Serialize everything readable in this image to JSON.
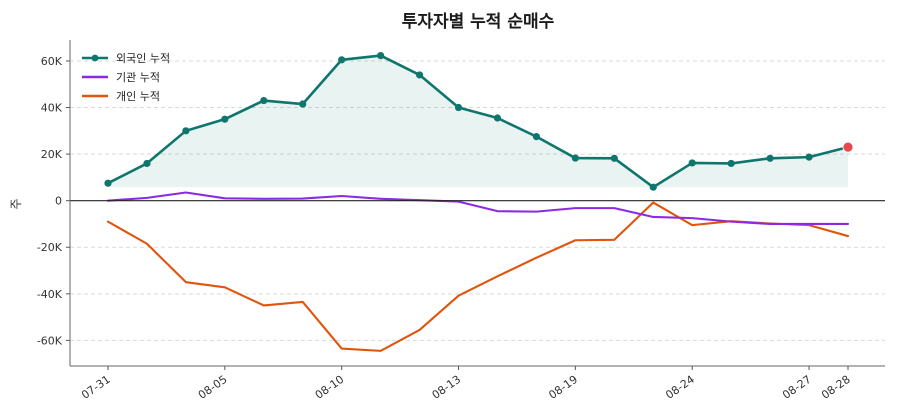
{
  "chart_data": {
    "type": "line",
    "title": "투자자별 누적 순매수",
    "xlabel": "",
    "ylabel": "주",
    "ylim": [
      -71000,
      69000
    ],
    "y_ticks": [
      -60000,
      -40000,
      -20000,
      0,
      20000,
      40000,
      60000
    ],
    "y_tick_labels": [
      "-60K",
      "-40K",
      "-20K",
      "0",
      "20K",
      "40K",
      "60K"
    ],
    "x_tick_labels": [
      "07-31",
      "08-05",
      "08-10",
      "08-13",
      "08-19",
      "08-24",
      "08-27",
      "08-28"
    ],
    "x_tick_positions": [
      0,
      3,
      6,
      9,
      12,
      15,
      18,
      19
    ],
    "grid": "horizontal-dashed",
    "legend_position": "top-left",
    "series": [
      {
        "name": "외국인 누적",
        "color": "#0f766e",
        "values": [
          7500,
          16000,
          30000,
          35000,
          43000,
          41500,
          60500,
          62300,
          54000,
          40000,
          35500,
          27500,
          18300,
          18200,
          5800,
          16200,
          16000,
          18200,
          18700,
          23000
        ]
      },
      {
        "name": "기관 누적",
        "color": "#8a2be2",
        "values": [
          0,
          1200,
          3500,
          1000,
          800,
          900,
          2000,
          800,
          200,
          -400,
          -4500,
          -4700,
          -3200,
          -3200,
          -7000,
          -7500,
          -9000,
          -10000,
          -10000,
          -10000
        ]
      },
      {
        "name": "개인 누적",
        "color": "#e0540b",
        "values": [
          -9000,
          -18500,
          -35000,
          -37200,
          -45000,
          -43500,
          -63500,
          -64500,
          -55500,
          -40800,
          -32500,
          -24500,
          -17000,
          -16800,
          -800,
          -10500,
          -8800,
          -9800,
          -10500,
          -15200
        ]
      }
    ]
  }
}
